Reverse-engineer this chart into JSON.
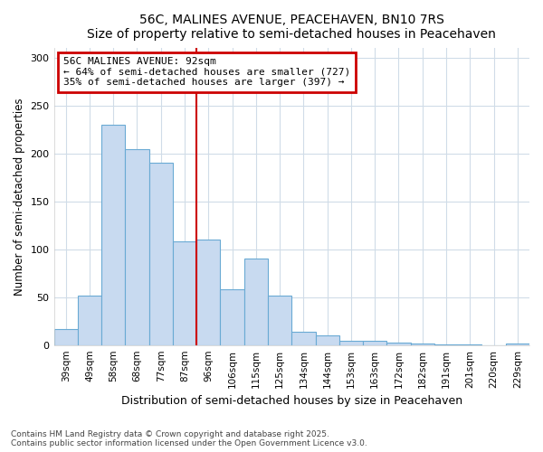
{
  "title": "56C, MALINES AVENUE, PEACEHAVEN, BN10 7RS",
  "subtitle": "Size of property relative to semi-detached houses in Peacehaven",
  "xlabel": "Distribution of semi-detached houses by size in Peacehaven",
  "ylabel": "Number of semi-detached properties",
  "categories": [
    "39sqm",
    "49sqm",
    "58sqm",
    "68sqm",
    "77sqm",
    "87sqm",
    "96sqm",
    "106sqm",
    "115sqm",
    "125sqm",
    "134sqm",
    "144sqm",
    "153sqm",
    "163sqm",
    "172sqm",
    "182sqm",
    "191sqm",
    "201sqm",
    "220sqm",
    "229sqm"
  ],
  "values": [
    17,
    52,
    230,
    205,
    190,
    108,
    110,
    58,
    90,
    52,
    14,
    10,
    4,
    4,
    3,
    2,
    1,
    1,
    0,
    2
  ],
  "bar_color": "#c8daf0",
  "bar_edge_color": "#6aaad4",
  "vline_x": 6.0,
  "vline_color": "#cc0000",
  "annotation_title": "56C MALINES AVENUE: 92sqm",
  "annotation_line1": "← 64% of semi-detached houses are smaller (727)",
  "annotation_line2": "35% of semi-detached houses are larger (397) →",
  "annotation_box_color": "#ffffff",
  "annotation_box_edge_color": "#cc0000",
  "ylim": [
    0,
    310
  ],
  "yticks": [
    0,
    50,
    100,
    150,
    200,
    250,
    300
  ],
  "footnote1": "Contains HM Land Registry data © Crown copyright and database right 2025.",
  "footnote2": "Contains public sector information licensed under the Open Government Licence v3.0.",
  "background_color": "#ffffff",
  "plot_bg_color": "#ffffff",
  "grid_color": "#d0dce8"
}
